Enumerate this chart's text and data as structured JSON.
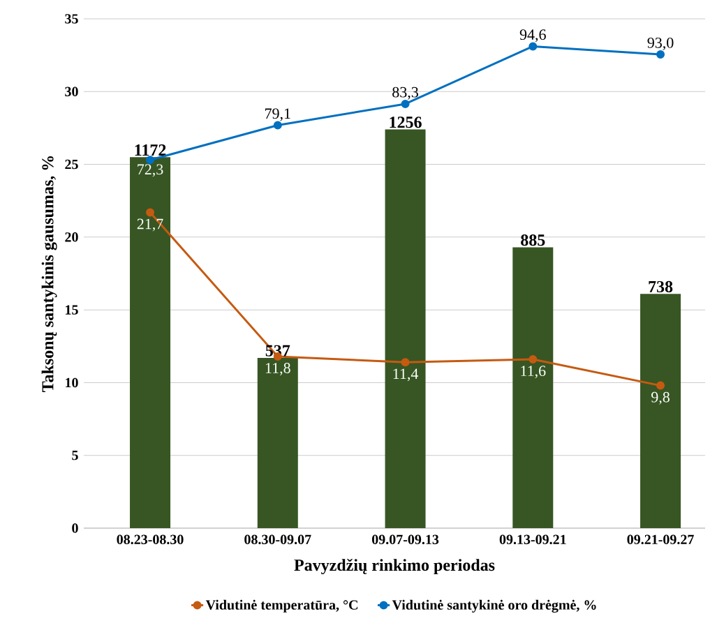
{
  "chart_data": {
    "type": "bar",
    "xlabel": "Pavyzdžių rinkimo periodas",
    "ylabel": "Taksonų santykinis gausumas, %",
    "categories": [
      "08.23-08.30",
      "08.30-09.07",
      "09.07-09.13",
      "09.13-09.21",
      "09.21-09.27"
    ],
    "series": [
      {
        "color": "#375623",
        "values": [
          25.5,
          11.7,
          27.4,
          19.3,
          16.1
        ]
      },
      {
        "type": "line",
        "name": "Vidutinė temperatūra, °C",
        "color": "#c55a11",
        "values": [
          21.7,
          11.8,
          11.4,
          11.6,
          9.8
        ],
        "value_labels": [
          "21,7",
          "11,8",
          "11,4",
          "11,6",
          "9,8"
        ]
      },
      {
        "type": "line",
        "name": "Vidutinė santykinė oro drėgmė, %",
        "color": "#0070c0",
        "axis": "y2",
        "values": [
          72.3,
          79.1,
          83.3,
          94.6,
          93.0
        ],
        "value_labels": [
          "72,3",
          "79,1",
          "83,3",
          "94,6",
          "93,0"
        ]
      }
    ],
    "annotations": [
      {
        "text": "1172",
        "x": "08.23-08.30",
        "y": 25.5
      },
      {
        "text": "537",
        "x": "08.30-09.07",
        "y": 11.7
      },
      {
        "text": "1256",
        "x": "09.07-09.13",
        "y": 27.4
      },
      {
        "text": "885",
        "x": "09.13-09.21",
        "y": 19.3
      },
      {
        "text": "738",
        "x": "09.21-09.27",
        "y": 16.1
      }
    ],
    "ylim": [
      0,
      35
    ],
    "yticks": [
      0,
      5,
      10,
      15,
      20,
      25,
      30,
      35
    ],
    "y2lim": [
      0,
      100
    ],
    "tick_labels": "y",
    "grid": "y",
    "legend": "bottom",
    "marker": "circle",
    "line_style": "solid"
  }
}
